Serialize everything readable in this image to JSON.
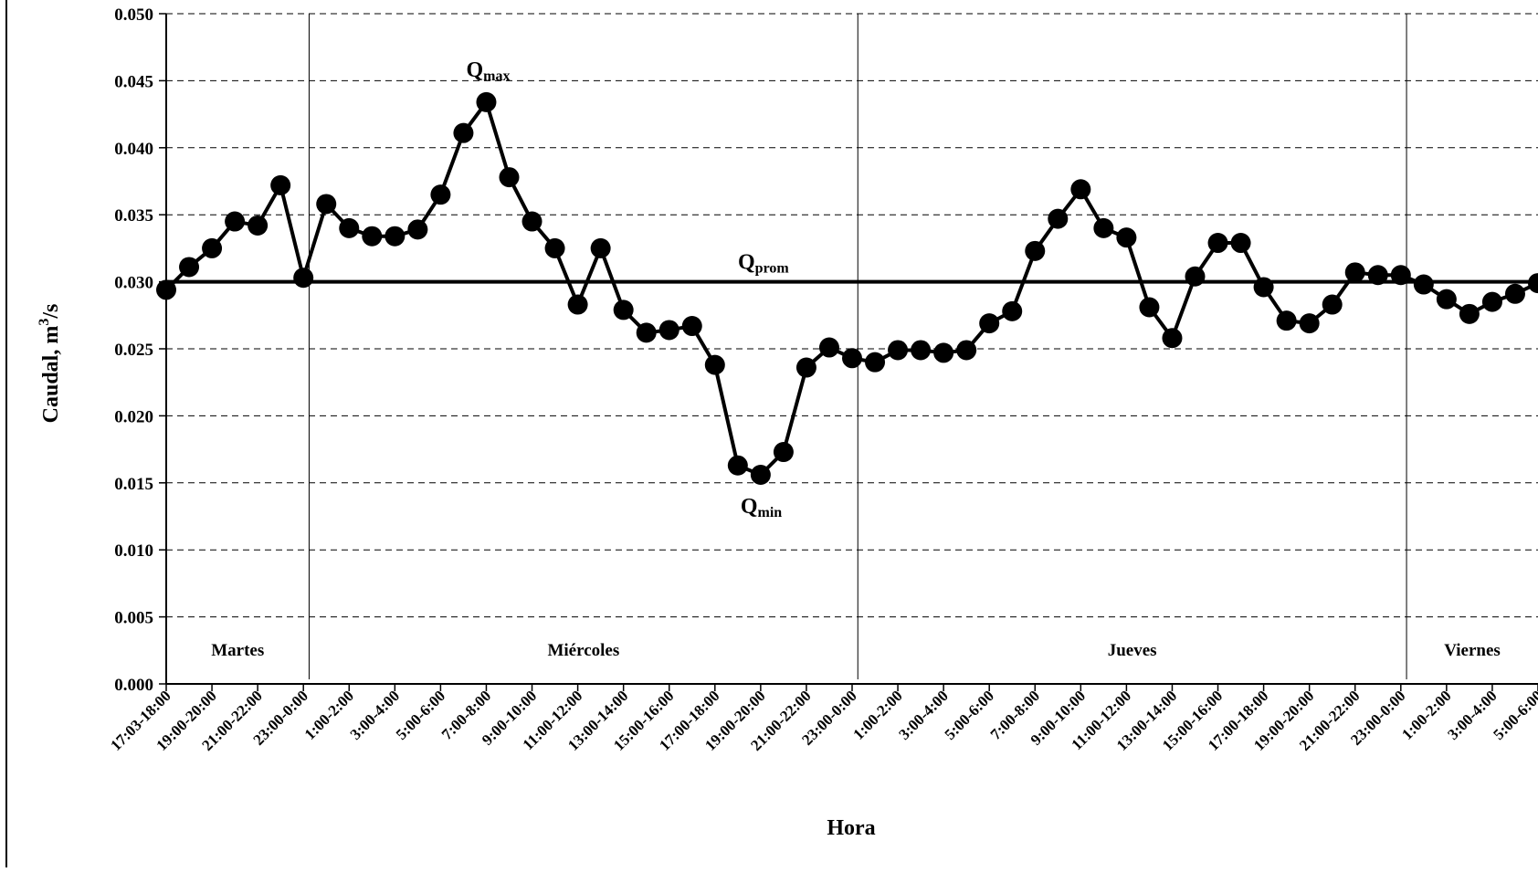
{
  "chart_data": {
    "type": "line",
    "xlabel": "Hora",
    "ylabel": "Caudal, m",
    "ylabel_sup": "3",
    "ylabel_suffix": "/s",
    "ylim": [
      0,
      0.05
    ],
    "y_ticks": [
      "0.000",
      "0.005",
      "0.010",
      "0.015",
      "0.020",
      "0.025",
      "0.030",
      "0.035",
      "0.040",
      "0.045",
      "0.050"
    ],
    "grid": "horizontal-dashed",
    "x_tick_labels": [
      "17:03-18:00",
      "19:00-20:00",
      "21:00-22:00",
      "23:00-0:00",
      "1:00-2:00",
      "3:00-4:00",
      "5:00-6:00",
      "7:00-8:00",
      "9:00-10:00",
      "11:00-12:00",
      "13:00-14:00",
      "15:00-16:00",
      "17:00-18:00",
      "19:00-20:00",
      "21:00-22:00",
      "23:00-0:00",
      "1:00-2:00",
      "3:00-4:00",
      "5:00-6:00",
      "7:00-8:00",
      "9:00-10:00",
      "11:00-12:00",
      "13:00-14:00",
      "15:00-16:00",
      "17:00-18:00",
      "19:00-20:00",
      "21:00-22:00",
      "23:00-0:00",
      "1:00-2:00",
      "3:00-4:00",
      "5:00-6:00"
    ],
    "days": [
      {
        "label": "Martes",
        "start": 0,
        "end": 6.25
      },
      {
        "label": "Miércoles",
        "start": 6.25,
        "end": 30.25
      },
      {
        "label": "Jueves",
        "start": 30.25,
        "end": 54.25
      },
      {
        "label": "Viernes",
        "start": 54.25,
        "end": 61
      }
    ],
    "series": [
      {
        "values": [
          0.0294,
          0.0311,
          0.0325,
          0.0345,
          0.0342,
          0.0372,
          0.0303,
          0.0358,
          0.034,
          0.0334,
          0.0334,
          0.0339,
          0.0365,
          0.0411,
          0.0434,
          0.0378,
          0.0345,
          0.0325,
          0.0283,
          0.0325,
          0.0279,
          0.0262,
          0.0264,
          0.0267,
          0.0238,
          0.0163,
          0.0156,
          0.0173,
          0.0236,
          0.0251,
          0.0243,
          0.024,
          0.0249,
          0.0249,
          0.0247,
          0.0249,
          0.0269,
          0.0278,
          0.0323,
          0.0347,
          0.0369,
          0.034,
          0.0333,
          0.0281,
          0.0258,
          0.0304,
          0.0329,
          0.0329,
          0.0296,
          0.0271,
          0.0269,
          0.0283,
          0.0307,
          0.0305,
          0.0305,
          0.0298,
          0.0287,
          0.0276,
          0.0285,
          0.0291,
          0.0299
        ]
      }
    ],
    "reference_line": {
      "value": 0.03,
      "label": "Q",
      "label_sub": "prom"
    },
    "annotations": [
      {
        "label": "Q",
        "sub": "max",
        "index": 14
      },
      {
        "label": "Q",
        "sub": "min",
        "index": 26
      }
    ]
  }
}
